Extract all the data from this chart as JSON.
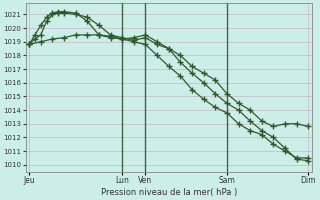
{
  "background_color": "#cceee8",
  "grid_color": "#c8b4c8",
  "line_color": "#2d5a2d",
  "title": "Pression niveau de la mer( hPa )",
  "ylim": [
    1009.5,
    1021.8
  ],
  "yticks": [
    1010,
    1011,
    1012,
    1013,
    1014,
    1015,
    1016,
    1017,
    1018,
    1019,
    1020,
    1021
  ],
  "xtick_labels": [
    "Jeu",
    "Lun",
    "Ven",
    "Sam",
    "Dim"
  ],
  "xtick_positions": [
    0,
    8,
    10,
    17,
    24
  ],
  "vlines_dark": [
    8,
    17
  ],
  "vlines_light": [
    10
  ],
  "line1_x": [
    0,
    0.5,
    1,
    1.5,
    2,
    2.5,
    3,
    4,
    5,
    6,
    7,
    8,
    9,
    10,
    11,
    12,
    13,
    14,
    15,
    16,
    17,
    18,
    19,
    20,
    21,
    22,
    23,
    24
  ],
  "line1_y": [
    1018.8,
    1019.2,
    1019.5,
    1020.5,
    1021.0,
    1021.1,
    1021.1,
    1021.0,
    1020.8,
    1020.2,
    1019.5,
    1019.3,
    1019.1,
    1019.3,
    1018.8,
    1018.5,
    1018.0,
    1017.2,
    1016.7,
    1016.2,
    1015.2,
    1014.5,
    1014.0,
    1013.2,
    1012.8,
    1013.0,
    1013.0,
    1012.8
  ],
  "line2_x": [
    0,
    0.5,
    1,
    1.5,
    2,
    2.5,
    3,
    4,
    5,
    6,
    7,
    8,
    9,
    10,
    11,
    12,
    13,
    14,
    15,
    16,
    17,
    18,
    19,
    20,
    21,
    22,
    23,
    24
  ],
  "line2_y": [
    1018.8,
    1019.5,
    1020.2,
    1020.8,
    1021.1,
    1021.2,
    1021.2,
    1021.1,
    1020.5,
    1019.5,
    1019.3,
    1019.2,
    1019.3,
    1019.5,
    1019.0,
    1018.5,
    1017.5,
    1016.7,
    1016.0,
    1015.2,
    1014.5,
    1014.0,
    1013.2,
    1012.5,
    1012.0,
    1011.2,
    1010.4,
    1010.3
  ],
  "line3_x": [
    0,
    1,
    2,
    3,
    4,
    5,
    6,
    7,
    8,
    9,
    10,
    11,
    12,
    13,
    14,
    15,
    16,
    17,
    18,
    19,
    20,
    21,
    22,
    23,
    24
  ],
  "line3_y": [
    1018.8,
    1019.0,
    1019.2,
    1019.3,
    1019.5,
    1019.5,
    1019.5,
    1019.4,
    1019.2,
    1019.0,
    1018.8,
    1018.0,
    1017.2,
    1016.5,
    1015.5,
    1014.8,
    1014.2,
    1013.8,
    1013.0,
    1012.5,
    1012.2,
    1011.5,
    1011.0,
    1010.5,
    1010.5
  ]
}
